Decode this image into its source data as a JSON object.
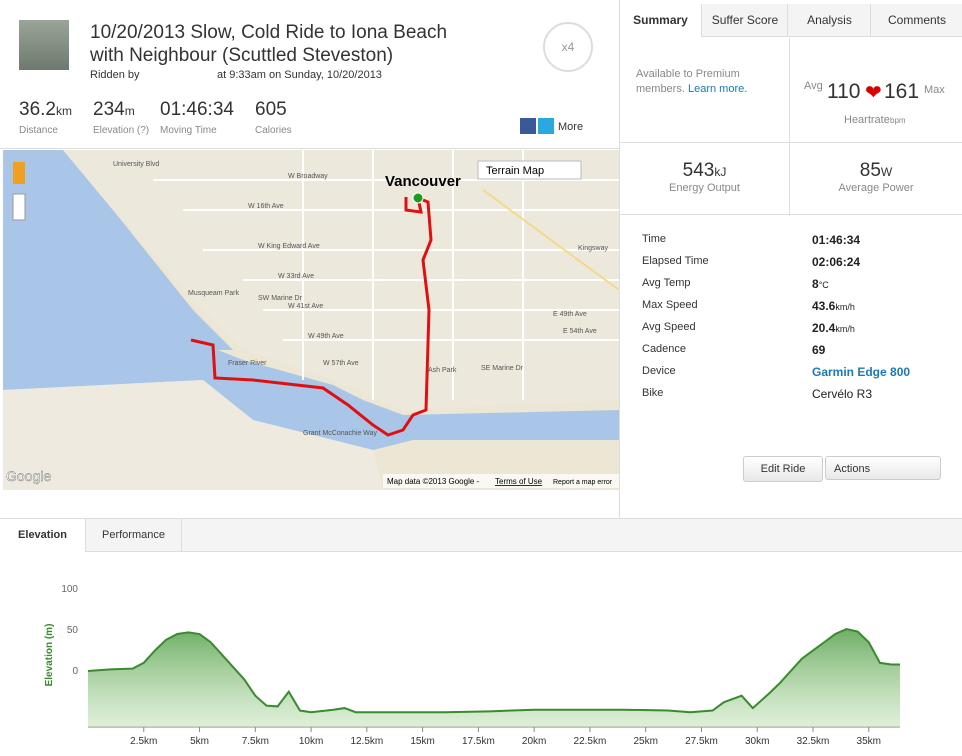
{
  "header": {
    "title_line1": "10/20/2013 Slow, Cold Ride to Iona Beach",
    "title_line2": "with Neighbour (Scuttled Steveston)",
    "ridden_by": "Ridden by",
    "date": "at 9:33am on Sunday, 10/20/2013",
    "badge": "x4",
    "more": "More"
  },
  "stats": [
    {
      "value": "36.2",
      "unit": "km",
      "label": "Distance"
    },
    {
      "value": "234",
      "unit": "m",
      "label": "Elevation (?)"
    },
    {
      "value": "01:46:34",
      "unit": "",
      "label": "Moving Time"
    },
    {
      "value": "605",
      "unit": "",
      "label": "Calories"
    }
  ],
  "map": {
    "control": "Terrain Map",
    "labels": [
      "Vancouver",
      "W Broadway",
      "W 16th Ave",
      "W King Edward Ave",
      "W 33rd Ave",
      "W 41st Ave",
      "W 49th Ave",
      "W 57th Ave",
      "SW Marine Dr",
      "Musqueam Park",
      "Fraser River",
      "Ash Park",
      "SE Marine Dr",
      "E 49th Ave",
      "E 54th Ave",
      "Kingsway",
      "University Blvd",
      "Grant McConachie Way"
    ],
    "logo": "Google",
    "attribution": "Map data ©2013 Google -",
    "terms": "Terms of Use",
    "report": "Report a map error"
  },
  "tabs": [
    "Summary",
    "Suffer Score",
    "Analysis",
    "Comments"
  ],
  "summary": {
    "premium": "Available to Premium members.",
    "learn_more": "Learn more.",
    "hr_avg_label": "Avg",
    "hr_avg": "110",
    "hr_max": "161",
    "hr_max_label": "Max",
    "hr_label": "Heartrate",
    "hr_unit": "bpm",
    "energy": "543",
    "energy_unit": "kJ",
    "energy_label": "Energy Output",
    "power": "85",
    "power_unit": "W",
    "power_label": "Average Power"
  },
  "details": [
    [
      "Time",
      "01:46:34",
      ""
    ],
    [
      "Elapsed Time",
      "02:06:24",
      ""
    ],
    [
      "Avg Temp",
      "8",
      "°C"
    ],
    [
      "Max Speed",
      "43.6",
      "km/h"
    ],
    [
      "Avg Speed",
      "20.4",
      "km/h"
    ],
    [
      "Cadence",
      "69",
      ""
    ],
    [
      "Device",
      "Garmin Edge 800",
      ""
    ],
    [
      "Bike",
      "Cervélo R3",
      ""
    ]
  ],
  "buttons": [
    "Edit Ride",
    "Actions"
  ],
  "bottom_tabs": [
    "Elevation",
    "Performance"
  ],
  "chart_data": {
    "type": "line",
    "y_label": "Elevation (m)",
    "color": "#3a8a2e",
    "x": [
      0,
      1,
      2,
      2.5,
      3,
      3.5,
      4,
      4.5,
      5,
      5.5,
      6,
      6.5,
      7,
      7.5,
      8,
      8.5,
      9,
      9.5,
      10,
      11,
      11.5,
      12,
      14,
      16,
      18,
      20,
      22,
      24,
      26,
      27,
      28,
      28.5,
      29.3,
      29.8,
      30.5,
      31,
      31.5,
      32,
      32.5,
      33,
      33.5,
      34,
      34.5,
      35,
      35.5,
      36,
      36.4
    ],
    "values": [
      0,
      2,
      3,
      10,
      25,
      38,
      45,
      47,
      45,
      35,
      20,
      5,
      -10,
      -30,
      -42,
      -43,
      -25,
      -48,
      -50,
      -47,
      -45,
      -50,
      -50,
      -50,
      -49,
      -47,
      -47,
      -47,
      -48,
      -50,
      -48,
      -38,
      -30,
      -45,
      -28,
      -15,
      0,
      15,
      25,
      35,
      45,
      51,
      48,
      35,
      10,
      8,
      8
    ],
    "xlim": [
      0,
      36.4
    ],
    "ylim": [
      -68,
      107
    ],
    "yticks": [
      0,
      50,
      100
    ],
    "xticks": [
      {
        "value": 2.5,
        "label": "2.5km"
      },
      {
        "value": 5,
        "label": "5km"
      },
      {
        "value": 7.5,
        "label": "7.5km"
      },
      {
        "value": 10,
        "label": "10km"
      },
      {
        "value": 12.5,
        "label": "12.5km"
      },
      {
        "value": 15,
        "label": "15km"
      },
      {
        "value": 17.5,
        "label": "17.5km"
      },
      {
        "value": 20,
        "label": "20km"
      },
      {
        "value": 22.5,
        "label": "22.5km"
      },
      {
        "value": 25,
        "label": "25km"
      },
      {
        "value": 27.5,
        "label": "27.5km"
      },
      {
        "value": 30,
        "label": "30km"
      },
      {
        "value": 32.5,
        "label": "32.5km"
      },
      {
        "value": 35,
        "label": "35km"
      }
    ]
  }
}
